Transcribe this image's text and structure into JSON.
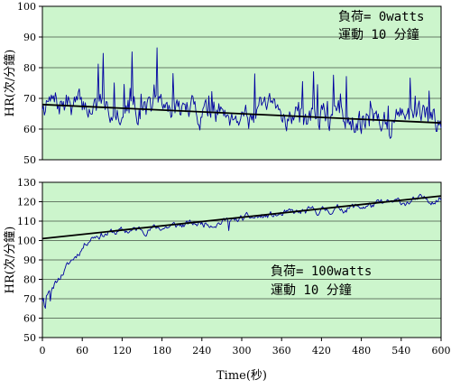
{
  "chart_data": [
    {
      "type": "line",
      "ylabel": "HR(次/分鐘)",
      "xlabel": "",
      "xlim": [
        0,
        600
      ],
      "ylim": [
        50,
        100
      ],
      "yticks": [
        50,
        60,
        70,
        80,
        90,
        100
      ],
      "annotations": [
        "負荷= 0watts",
        "運動 10 分鐘"
      ],
      "plot_background": "#ccf5cc",
      "series": [
        {
          "kind": "hr_trace",
          "color": "#0000a0",
          "noise": {
            "base": 68,
            "end": 63,
            "amp": 7,
            "spike_amp": 14,
            "seed": 7
          }
        },
        {
          "kind": "trend",
          "color": "#000000",
          "x": [
            0,
            600
          ],
          "y": [
            68,
            62
          ]
        }
      ]
    },
    {
      "type": "line",
      "ylabel": "HR(次/分鐘)",
      "xlabel": "Time(秒)",
      "xlim": [
        0,
        600
      ],
      "ylim": [
        50,
        130
      ],
      "yticks": [
        50,
        60,
        70,
        80,
        90,
        100,
        110,
        120,
        130
      ],
      "xticks": [
        0,
        60,
        120,
        180,
        240,
        300,
        360,
        420,
        480,
        540,
        600
      ],
      "annotations": [
        "負荷= 100watts",
        "運動 10 分鐘"
      ],
      "plot_background": "#ccf5cc",
      "series": [
        {
          "kind": "hr_trace",
          "color": "#0000a0",
          "noise": {
            "start": 72,
            "rise_end_x": 70,
            "plateau_start": 103,
            "plateau_end": 122,
            "amp": 3,
            "seed": 11
          }
        },
        {
          "kind": "trend",
          "color": "#000000",
          "x": [
            0,
            600
          ],
          "y": [
            101,
            123
          ]
        }
      ]
    }
  ]
}
